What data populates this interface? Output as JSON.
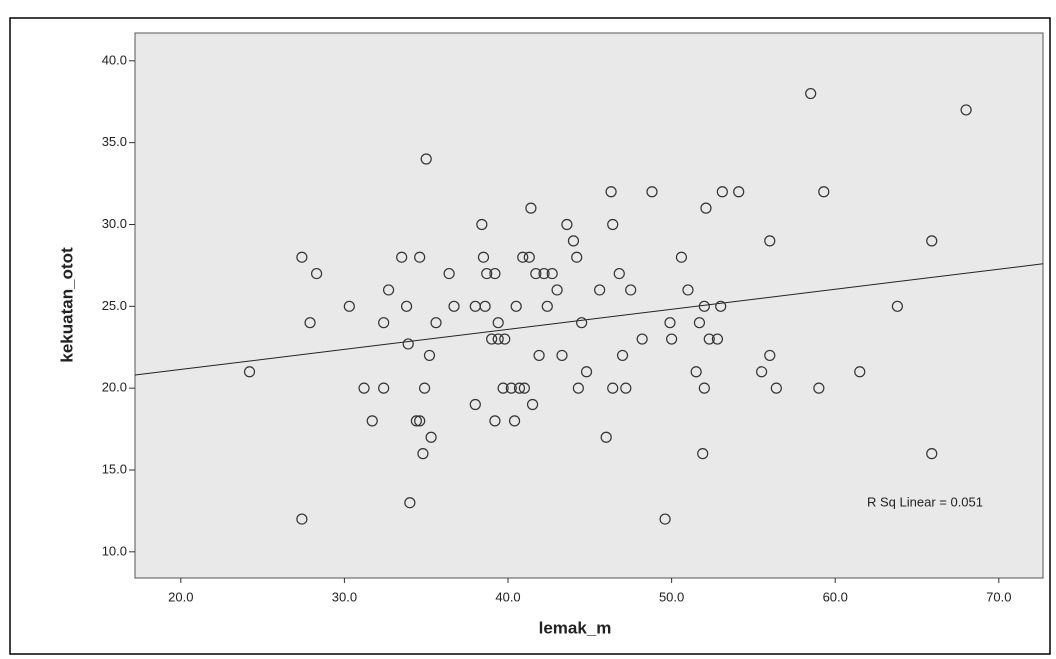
{
  "chart_data": {
    "type": "scatter",
    "x_label": "lemak_m",
    "y_label": "kekuatan_otot",
    "annotation": "R Sq Linear = 0.051",
    "xlim": [
      17.2,
      72.7
    ],
    "ylim": [
      8.4,
      41.7
    ],
    "xticks": [
      {
        "value": 20,
        "label": "20.0"
      },
      {
        "value": 30,
        "label": "30.0"
      },
      {
        "value": 40,
        "label": "40.0"
      },
      {
        "value": 50,
        "label": "50.0"
      },
      {
        "value": 60,
        "label": "60.0"
      },
      {
        "value": 70,
        "label": "70.0"
      }
    ],
    "yticks": [
      {
        "value": 10,
        "label": "10.0"
      },
      {
        "value": 15,
        "label": "15.0"
      },
      {
        "value": 20,
        "label": "20.0"
      },
      {
        "value": 25,
        "label": "25.0"
      },
      {
        "value": 30,
        "label": "30.0"
      },
      {
        "value": 35,
        "label": "35.0"
      },
      {
        "value": 40,
        "label": "40.0"
      }
    ],
    "color": "#333333",
    "x": [
      24.2,
      27.4,
      27.4,
      27.9,
      28.3,
      30.3,
      31.2,
      31.7,
      32.4,
      32.4,
      32.7,
      33.5,
      33.8,
      33.9,
      34.0,
      34.4,
      34.6,
      34.6,
      34.8,
      34.9,
      35.0,
      35.2,
      35.3,
      35.6,
      36.4,
      36.7,
      38.0,
      38.0,
      38.4,
      38.5,
      38.6,
      38.7,
      39.0,
      39.2,
      39.2,
      39.4,
      39.4,
      39.7,
      39.8,
      40.2,
      40.4,
      40.5,
      40.7,
      40.9,
      41.0,
      41.3,
      41.4,
      41.5,
      41.7,
      41.9,
      42.2,
      42.4,
      42.7,
      43.0,
      43.3,
      43.6,
      44.0,
      44.2,
      44.3,
      44.5,
      44.8,
      45.6,
      46.0,
      46.3,
      46.4,
      46.4,
      46.8,
      47.0,
      47.2,
      47.5,
      48.2,
      48.8,
      49.6,
      49.9,
      50.0,
      50.6,
      51.0,
      51.5,
      51.7,
      51.9,
      52.0,
      52.0,
      52.1,
      52.3,
      52.8,
      53.0,
      53.1,
      54.1,
      55.5,
      56.0,
      56.0,
      56.4,
      58.5,
      59.0,
      59.3,
      61.5,
      63.8,
      65.9,
      65.9,
      68.0
    ],
    "values": [
      21,
      12,
      28,
      24,
      27,
      25,
      20,
      18,
      24,
      20,
      26,
      28,
      25,
      22.7,
      13,
      18,
      18,
      28,
      16,
      20,
      34,
      22,
      17,
      24,
      27,
      25,
      19,
      25,
      30,
      28,
      25,
      27,
      23,
      27,
      18,
      24,
      23,
      20,
      23,
      20,
      18,
      25,
      20,
      28,
      20,
      28,
      31,
      19,
      27,
      22,
      27,
      25,
      27,
      26,
      22,
      30,
      29,
      28,
      20,
      24,
      21,
      26,
      17,
      32,
      30,
      20,
      27,
      22,
      20,
      26,
      23,
      32,
      12,
      24,
      23,
      28,
      26,
      21,
      24,
      16,
      25,
      20,
      31,
      23,
      23,
      25,
      32,
      32,
      21,
      22,
      29,
      20,
      38,
      20,
      32,
      21,
      25,
      29,
      16,
      37
    ],
    "fit_line": {
      "x": [
        17.2,
        72.7
      ],
      "y": [
        20.8,
        27.6
      ]
    }
  }
}
